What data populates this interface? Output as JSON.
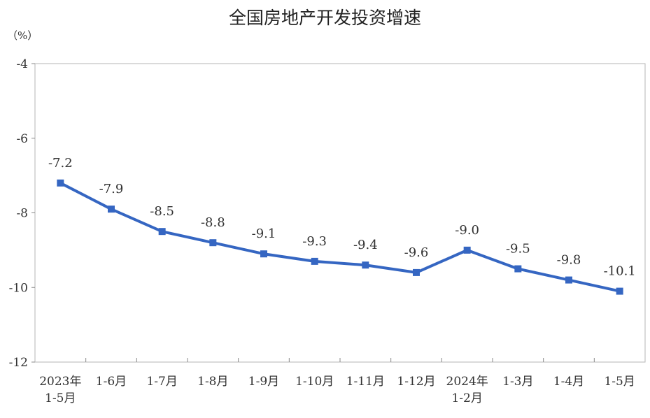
{
  "chart_data": {
    "type": "line",
    "title": "全国房地产开发投资增速",
    "unit": "（%）",
    "categories": [
      [
        "2023年",
        "1-5月"
      ],
      [
        "1-6月"
      ],
      [
        "1-7月"
      ],
      [
        "1-8月"
      ],
      [
        "1-9月"
      ],
      [
        "1-10月"
      ],
      [
        "1-11月"
      ],
      [
        "1-12月"
      ],
      [
        "2024年",
        "1-2月"
      ],
      [
        "1-3月"
      ],
      [
        "1-4月"
      ],
      [
        "1-5月"
      ]
    ],
    "values": [
      -7.2,
      -7.9,
      -8.5,
      -8.8,
      -9.1,
      -9.3,
      -9.4,
      -9.6,
      -9.0,
      -9.5,
      -9.8,
      -10.1
    ],
    "value_labels": [
      "-7.2",
      "-7.9",
      "-8.5",
      "-8.8",
      "-9.1",
      "-9.3",
      "-9.4",
      "-9.6",
      "-9.0",
      "-9.5",
      "-9.8",
      "-10.1"
    ],
    "ylim": [
      -12,
      -4
    ],
    "yticks": [
      -4,
      -6,
      -8,
      -10,
      -12
    ],
    "ytick_labels": [
      "-4",
      "-6",
      "-8",
      "-10",
      "-12"
    ],
    "grid": false,
    "line_color": "#3566c2"
  }
}
